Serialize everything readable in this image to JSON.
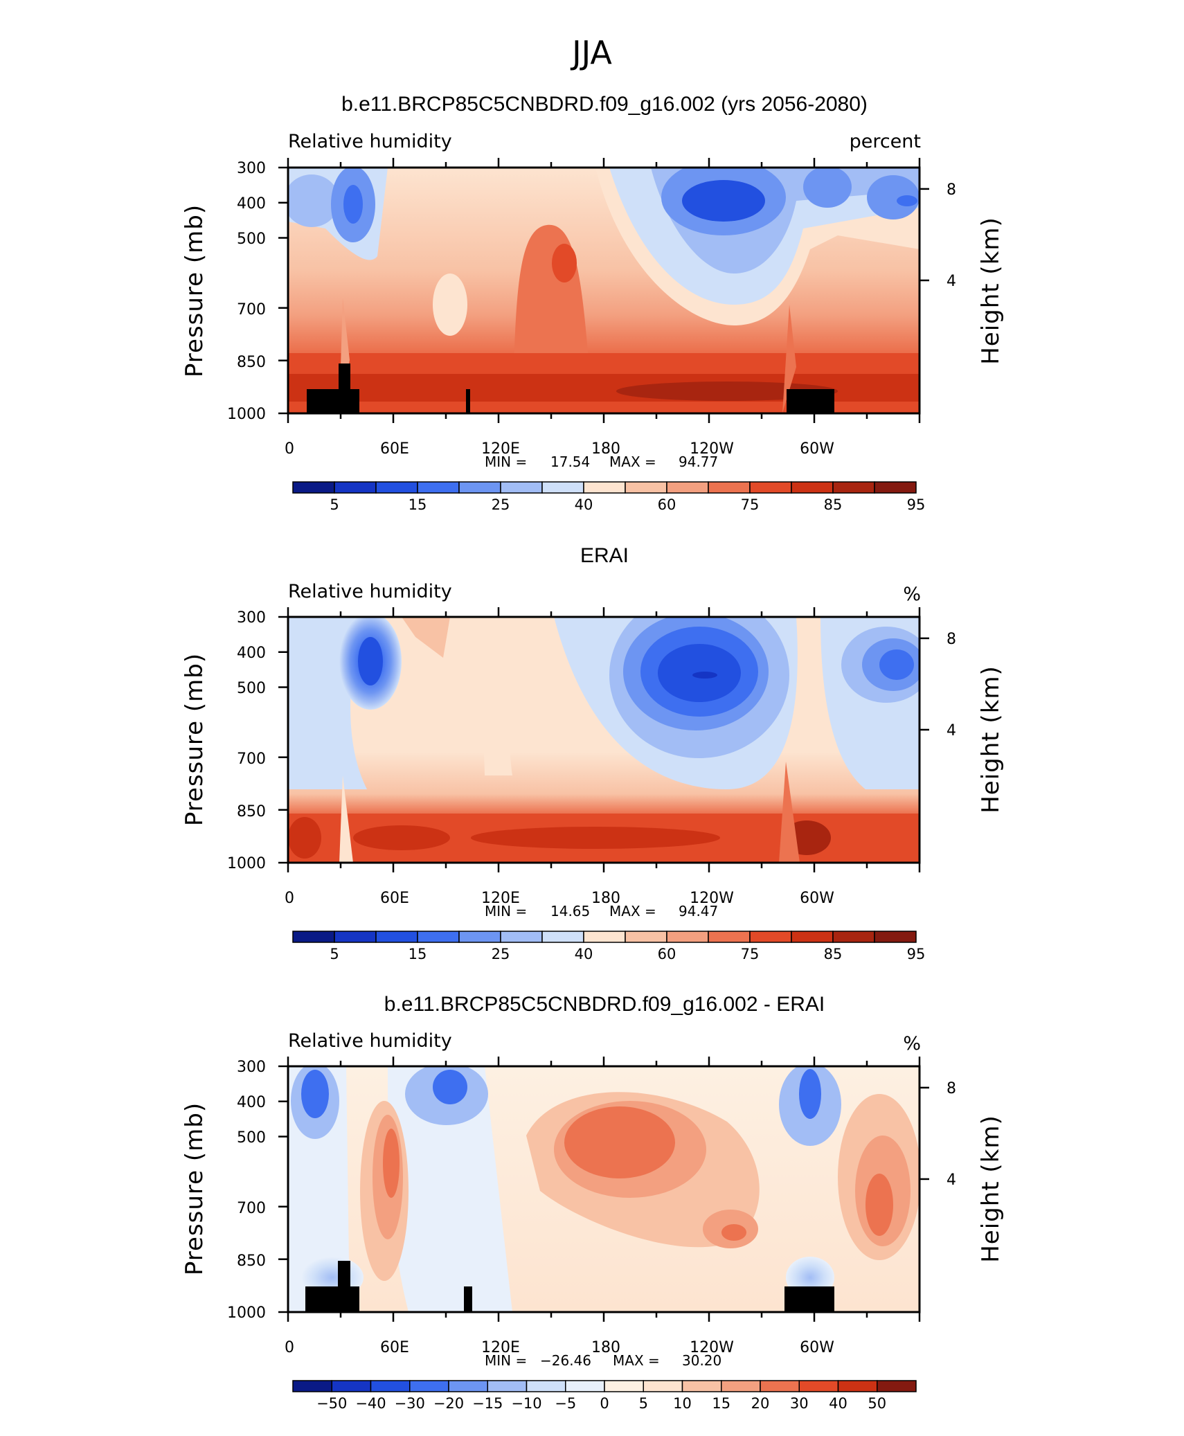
{
  "figure": {
    "title": "JJA"
  },
  "chart_data": [
    {
      "type": "heatmap",
      "title": "b.e11.BRCP85C5CNBDRD.f09_g16.002 (yrs 2056-2080)",
      "variable": "Relative humidity",
      "units": "percent",
      "xlabel": "",
      "ylabel": "Pressure (mb)",
      "y2label": "Height (km)",
      "x_ticks": [
        "0",
        "60E",
        "120E",
        "180",
        "120W",
        "60W"
      ],
      "y_ticks": [
        "300",
        "400",
        "500",
        "700",
        "850",
        "1000"
      ],
      "y2_ticks": [
        "8",
        "4"
      ],
      "min_label": "MIN =",
      "min_value": "17.54",
      "max_label": "MAX =",
      "max_value": "94.77",
      "colorbar": {
        "labels": [
          "5",
          "15",
          "25",
          "40",
          "60",
          "75",
          "85",
          "95"
        ],
        "colors": [
          "#0a1a86",
          "#1535c4",
          "#2250e0",
          "#3e6ff0",
          "#6d95f2",
          "#a2bdf5",
          "#cfe0f9",
          "#fde4d0",
          "#f8c2a5",
          "#f3a080",
          "#ec7350",
          "#e24a28",
          "#cc3214",
          "#a82510",
          "#841a10"
        ]
      },
      "land_blocks": true
    },
    {
      "type": "heatmap",
      "title": "ERAI",
      "variable": "Relative humidity",
      "units": "%",
      "xlabel": "",
      "ylabel": "Pressure (mb)",
      "y2label": "Height (km)",
      "x_ticks": [
        "0",
        "60E",
        "120E",
        "180",
        "120W",
        "60W"
      ],
      "y_ticks": [
        "300",
        "400",
        "500",
        "700",
        "850",
        "1000"
      ],
      "y2_ticks": [
        "8",
        "4"
      ],
      "min_label": "MIN =",
      "min_value": "14.65",
      "max_label": "MAX =",
      "max_value": "94.47",
      "colorbar": {
        "labels": [
          "5",
          "15",
          "25",
          "40",
          "60",
          "75",
          "85",
          "95"
        ],
        "colors": [
          "#0a1a86",
          "#1535c4",
          "#2250e0",
          "#3e6ff0",
          "#6d95f2",
          "#a2bdf5",
          "#cfe0f9",
          "#fde4d0",
          "#f8c2a5",
          "#f3a080",
          "#ec7350",
          "#e24a28",
          "#cc3214",
          "#a82510",
          "#841a10"
        ]
      },
      "land_blocks": false
    },
    {
      "type": "heatmap",
      "title": "b.e11.BRCP85C5CNBDRD.f09_g16.002 - ERAI",
      "variable": "Relative humidity",
      "units": "%",
      "xlabel": "",
      "ylabel": "Pressure (mb)",
      "y2label": "Height (km)",
      "x_ticks": [
        "0",
        "60E",
        "120E",
        "180",
        "120W",
        "60W"
      ],
      "y_ticks": [
        "300",
        "400",
        "500",
        "700",
        "850",
        "1000"
      ],
      "y2_ticks": [
        "8",
        "4"
      ],
      "min_label": "MIN =",
      "min_value": "−26.46",
      "max_label": "MAX =",
      "max_value": "30.20",
      "colorbar": {
        "labels": [
          "−50",
          "−40",
          "−30",
          "−20",
          "−15",
          "−10",
          "−5",
          "0",
          "5",
          "10",
          "15",
          "20",
          "30",
          "40",
          "50"
        ],
        "colors": [
          "#0a1a86",
          "#1535c4",
          "#2250e0",
          "#3e6ff0",
          "#6d95f2",
          "#a2bdf5",
          "#cfe0f9",
          "#e8f0fb",
          "#fdf0e2",
          "#fde4d0",
          "#f8c2a5",
          "#f3a080",
          "#ec7350",
          "#e24a28",
          "#cc3214",
          "#841a10"
        ]
      },
      "land_blocks": true
    }
  ]
}
